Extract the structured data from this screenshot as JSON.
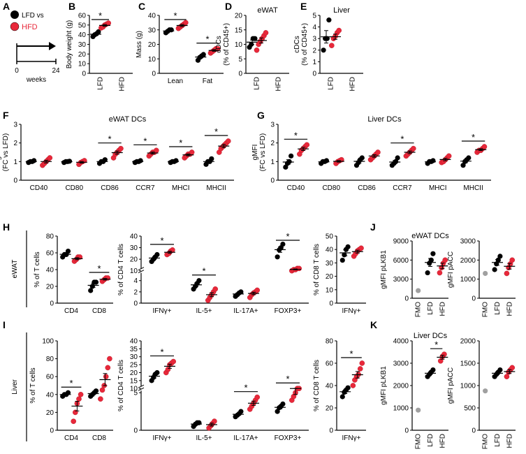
{
  "colors": {
    "lfd": "#000000",
    "hfd": "#e8283a",
    "fmo": "#a0a0a0"
  },
  "panel_labels": [
    "A",
    "B",
    "C",
    "D",
    "E",
    "F",
    "G",
    "H",
    "I",
    "J",
    "K"
  ],
  "schematic": {
    "legend": [
      {
        "label": "LFD vs",
        "color": "#000000"
      },
      {
        "label": "HFD",
        "color": "#e8283a"
      }
    ],
    "tick_start": "0",
    "tick_end": "24",
    "xlabel": "weeks"
  },
  "row_labels": {
    "H": "eWAT",
    "I": "Liver"
  },
  "chart_data": [
    {
      "id": "B",
      "type": "scatter",
      "title": "",
      "ylabel": "Body weight (g)",
      "ylim": [
        0,
        60
      ],
      "yticks": [
        "0",
        "10",
        "20",
        "30",
        "40",
        "50",
        "60"
      ],
      "categories": [
        "LFD",
        "HFD"
      ],
      "rotate_x": true,
      "series": [
        {
          "name": "LFD",
          "values": [
            [
              38,
              40,
              41,
              43
            ]
          ]
        },
        {
          "name": "HFD",
          "values": [
            [
              47,
              48,
              50,
              51,
              52
            ]
          ]
        }
      ],
      "sig": [
        0
      ]
    },
    {
      "id": "C",
      "type": "scatter",
      "title": "",
      "ylabel": "Mass (g)",
      "ylim": [
        0,
        40
      ],
      "yticks": [
        "0",
        "10",
        "20",
        "30",
        "40"
      ],
      "categories": [
        "Lean",
        "Fat"
      ],
      "series": [
        {
          "name": "LFD",
          "values": [
            [
              28,
              29,
              30,
              30
            ],
            [
              9,
              11,
              12,
              13
            ]
          ]
        },
        {
          "name": "HFD",
          "values": [
            [
              31,
              32,
              33,
              34,
              35
            ],
            [
              14,
              15,
              16,
              17,
              17
            ]
          ]
        }
      ],
      "sig": [
        0,
        1
      ]
    },
    {
      "id": "D",
      "type": "scatter",
      "title": "eWAT",
      "ylabel": "cDCs (% of CD45+)",
      "ylim": [
        0,
        20
      ],
      "yticks": [
        "0",
        "5",
        "10",
        "15",
        "20"
      ],
      "categories": [
        "LFD",
        "HFD"
      ],
      "rotate_x": true,
      "series": [
        {
          "name": "LFD",
          "values": [
            [
              9,
              10,
              12,
              12
            ]
          ]
        },
        {
          "name": "HFD",
          "values": [
            [
              8,
              10,
              11,
              12,
              13,
              14
            ]
          ]
        }
      ],
      "sig": []
    },
    {
      "id": "E",
      "type": "scatter",
      "title": "Liver",
      "ylabel": "cDCs (% of CD45+)",
      "ylim": [
        0,
        5
      ],
      "yticks": [
        "0",
        "1",
        "2",
        "3",
        "4",
        "5"
      ],
      "categories": [
        "LFD",
        "HFD"
      ],
      "rotate_x": true,
      "series": [
        {
          "name": "LFD",
          "values": [
            [
              2,
              3,
              3,
              4.6
            ]
          ]
        },
        {
          "name": "HFD",
          "values": [
            [
              2.4,
              3,
              3.2,
              3.5,
              3.7
            ]
          ]
        }
      ],
      "sig": []
    },
    {
      "id": "F",
      "type": "scatter",
      "title": "eWAT DCs",
      "ylabel": "gMFI (FC vs LFD)",
      "ylim": [
        0,
        3
      ],
      "yticks": [
        "0",
        "1",
        "2",
        "3"
      ],
      "categories": [
        "CD40",
        "CD80",
        "CD86",
        "CCR7",
        "MHCI",
        "MHCII"
      ],
      "series": [
        {
          "name": "LFD",
          "values": [
            [
              0.95,
              1,
              1,
              1.05
            ],
            [
              0.95,
              1,
              1,
              1.02
            ],
            [
              0.9,
              1,
              1,
              1.1
            ],
            [
              0.95,
              1,
              1,
              1.05
            ],
            [
              0.95,
              1,
              1,
              1.05
            ],
            [
              0.85,
              1,
              1,
              1.15
            ]
          ]
        },
        {
          "name": "HFD",
          "values": [
            [
              0.8,
              0.9,
              1,
              1.1,
              1.2
            ],
            [
              0.85,
              0.95,
              1,
              1.05
            ],
            [
              1.2,
              1.4,
              1.5,
              1.6,
              1.7
            ],
            [
              1.3,
              1.4,
              1.5,
              1.5,
              1.6
            ],
            [
              1.2,
              1.3,
              1.4,
              1.4,
              1.5
            ],
            [
              1.5,
              1.7,
              1.8,
              1.9,
              2.0,
              2.1
            ]
          ]
        }
      ],
      "sig": [
        2,
        3,
        4,
        5
      ]
    },
    {
      "id": "G",
      "type": "scatter",
      "title": "Liver DCs",
      "ylabel": "gMFI (FC vs LFD)",
      "ylim": [
        0,
        3
      ],
      "yticks": [
        "0",
        "1",
        "2",
        "3"
      ],
      "categories": [
        "CD40",
        "CD80",
        "CD86",
        "CCR7",
        "MHCI",
        "MHCII"
      ],
      "series": [
        {
          "name": "LFD",
          "values": [
            [
              0.7,
              0.9,
              1,
              1.3
            ],
            [
              0.9,
              1,
              1,
              1.05
            ],
            [
              0.8,
              0.95,
              1.1,
              1.2
            ],
            [
              0.8,
              0.9,
              1,
              1.2
            ],
            [
              0.9,
              1,
              1,
              1.05
            ],
            [
              0.8,
              1,
              1.1,
              1.2
            ]
          ]
        },
        {
          "name": "HFD",
          "values": [
            [
              1.4,
              1.6,
              1.7,
              1.8,
              1.9
            ],
            [
              0.9,
              1,
              1.05,
              1.1
            ],
            [
              1.1,
              1.2,
              1.3,
              1.4,
              1.5
            ],
            [
              1.3,
              1.4,
              1.5,
              1.6,
              1.7
            ],
            [
              0.95,
              1,
              1.1,
              1.2,
              1.3
            ],
            [
              1.5,
              1.6,
              1.6,
              1.7,
              1.8
            ]
          ]
        }
      ],
      "sig": [
        0,
        3,
        5
      ]
    },
    {
      "id": "H1",
      "type": "scatter",
      "title": "",
      "ylabel": "% of T cells",
      "ylim": [
        0,
        80
      ],
      "yticks": [
        "0",
        "20",
        "40",
        "60",
        "80"
      ],
      "categories": [
        "CD4",
        "CD8"
      ],
      "series": [
        {
          "name": "LFD",
          "values": [
            [
              55,
              58,
              58,
              62
            ],
            [
              15,
              20,
              25,
              25
            ]
          ]
        },
        {
          "name": "HFD",
          "values": [
            [
              50,
              52,
              55,
              55
            ],
            [
              26,
              28,
              30,
              30
            ]
          ]
        }
      ],
      "sig": [
        1
      ]
    },
    {
      "id": "H2",
      "type": "scatter",
      "title": "",
      "ylabel": "% of CD4 T cells",
      "ylim": [
        0,
        40
      ],
      "ybreak": [
        5,
        10
      ],
      "yticks": [
        "0",
        "2",
        "4",
        "10",
        "20",
        "30",
        "40"
      ],
      "categories": [
        "IFNγ+",
        "IL-5+",
        "IL-17A+",
        "FOXP3+"
      ],
      "series": [
        {
          "name": "LFD",
          "values": [
            [
              18,
              20,
              22,
              24
            ],
            [
              2.5,
              3,
              3.5,
              4
            ],
            [
              1.2,
              1.5,
              1.8,
              2
            ],
            [
              22,
              28,
              30,
              33
            ]
          ]
        },
        {
          "name": "HFD",
          "values": [
            [
              24,
              25,
              27,
              28
            ],
            [
              0.5,
              1,
              1.5,
              2,
              2.5
            ],
            [
              1,
              1.5,
              1.8,
              2,
              2.3
            ],
            [
              10,
              11,
              11,
              12,
              12
            ]
          ]
        }
      ],
      "sig": [
        0,
        1,
        3
      ]
    },
    {
      "id": "H3",
      "type": "scatter",
      "title": "",
      "ylabel": "% of CD8 T cells",
      "ylim": [
        0,
        50
      ],
      "yticks": [
        "0",
        "10",
        "20",
        "30",
        "40",
        "50"
      ],
      "categories": [
        "IFNγ+"
      ],
      "series": [
        {
          "name": "LFD",
          "values": [
            [
              32,
              36,
              40,
              42
            ]
          ]
        },
        {
          "name": "HFD",
          "values": [
            [
              35,
              37,
              39,
              40,
              41
            ]
          ]
        }
      ],
      "sig": []
    },
    {
      "id": "I1",
      "type": "scatter",
      "title": "",
      "ylabel": "% of T cells",
      "ylim": [
        0,
        100
      ],
      "yticks": [
        "0",
        "20",
        "40",
        "60",
        "80",
        "100"
      ],
      "categories": [
        "CD4",
        "CD8"
      ],
      "series": [
        {
          "name": "LFD",
          "values": [
            [
              38,
              40,
              40,
              42
            ],
            [
              38,
              40,
              42,
              44
            ]
          ]
        },
        {
          "name": "HFD",
          "values": [
            [
              10,
              20,
              30,
              35,
              40
            ],
            [
              35,
              45,
              50,
              60,
              70,
              80
            ]
          ]
        }
      ],
      "sig": [
        0
      ]
    },
    {
      "id": "I2",
      "type": "scatter",
      "title": "",
      "ylabel": "% of CD4 T cells",
      "ylim": [
        0,
        40
      ],
      "ybreak": [
        5,
        10
      ],
      "yticks": [
        "0",
        "5",
        "10",
        "15",
        "20",
        "25",
        "30",
        "35",
        "40"
      ],
      "categories": [
        "IFNγ+",
        "IL-5+",
        "IL-17A+",
        "FOXP3+"
      ],
      "series": [
        {
          "name": "LFD",
          "values": [
            [
              15,
              17,
              19,
              20
            ],
            [
              0.5,
              0.8,
              1,
              1
            ],
            [
              1.8,
              2,
              2.2,
              2.5
            ],
            [
              2.5,
              3,
              3.2,
              3.5
            ]
          ]
        },
        {
          "name": "HFD",
          "values": [
            [
              20,
              22,
              25,
              26,
              27
            ],
            [
              0.3,
              0.6,
              0.9,
              1.2
            ],
            [
              2.8,
              3.2,
              3.6,
              4,
              4.4
            ],
            [
              4,
              4.5,
              5,
              6,
              7
            ]
          ]
        }
      ],
      "sig": [
        0,
        2,
        3
      ]
    },
    {
      "id": "I3",
      "type": "scatter",
      "title": "",
      "ylabel": "% of CD8 T cells",
      "ylim": [
        0,
        80
      ],
      "yticks": [
        "0",
        "20",
        "40",
        "60",
        "80"
      ],
      "categories": [
        "IFNγ+"
      ],
      "series": [
        {
          "name": "LFD",
          "values": [
            [
              30,
              34,
              36,
              38
            ]
          ]
        },
        {
          "name": "HFD",
          "values": [
            [
              40,
              45,
              48,
              50,
              55,
              60
            ]
          ]
        }
      ],
      "sig": [
        0
      ]
    },
    {
      "id": "J1",
      "type": "scatter",
      "title": "eWAT DCs",
      "ylabel": "gMFI pLKB1",
      "ylim": [
        0,
        9000
      ],
      "yticks": [
        "0",
        "3000",
        "6000",
        "9000"
      ],
      "categories": [
        "FMO",
        "LFD",
        "HFD"
      ],
      "rotate_x": true,
      "series": [
        {
          "name": "FMO",
          "values": [
            [
              1200
            ],
            [],
            []
          ]
        },
        {
          "name": "LFD",
          "values": [
            [],
            [
              4000,
              5500,
              6000,
              7000
            ],
            []
          ]
        },
        {
          "name": "HFD",
          "values": [
            [],
            [],
            [
              4000,
              4800,
              5500,
              6000
            ]
          ]
        }
      ],
      "sig": []
    },
    {
      "id": "J2",
      "type": "scatter",
      "title": "",
      "ylabel": "gMFI pACC",
      "ylim": [
        0,
        3000
      ],
      "yticks": [
        "0",
        "1000",
        "2000",
        "3000"
      ],
      "categories": [
        "FMO",
        "LFD",
        "HFD"
      ],
      "rotate_x": true,
      "series": [
        {
          "name": "FMO",
          "values": [
            [
              1300
            ],
            [],
            []
          ]
        },
        {
          "name": "LFD",
          "values": [
            [],
            [
              1500,
              1800,
              2000,
              2200
            ],
            []
          ]
        },
        {
          "name": "HFD",
          "values": [
            [],
            [],
            [
              1300,
              1600,
              1800,
              2000
            ]
          ]
        }
      ],
      "sig": []
    },
    {
      "id": "K1",
      "type": "scatter",
      "title": "Liver DCs",
      "ylabel": "gMFI pLKB1",
      "ylim": [
        0,
        4000
      ],
      "yticks": [
        "0",
        "1000",
        "2000",
        "3000",
        "4000"
      ],
      "categories": [
        "FMO",
        "LFD",
        "HFD"
      ],
      "rotate_x": true,
      "series": [
        {
          "name": "FMO",
          "values": [
            [
              900
            ],
            [],
            []
          ]
        },
        {
          "name": "LFD",
          "values": [
            [],
            [
              2400,
              2500,
              2600,
              2700
            ],
            []
          ]
        },
        {
          "name": "HFD",
          "values": [
            [],
            [],
            [
              3100,
              3300,
              3400
            ]
          ]
        }
      ],
      "sig": [
        [
          1,
          2
        ]
      ]
    },
    {
      "id": "K2",
      "type": "scatter",
      "title": "",
      "ylabel": "gMFI pACC",
      "ylim": [
        0,
        2000
      ],
      "yticks": [
        "0",
        "500",
        "1000",
        "1500",
        "2000"
      ],
      "categories": [
        "FMO",
        "LFD",
        "HFD"
      ],
      "rotate_x": true,
      "series": [
        {
          "name": "FMO",
          "values": [
            [
              880
            ],
            [],
            []
          ]
        },
        {
          "name": "LFD",
          "values": [
            [],
            [
              1200,
              1250,
              1300,
              1350
            ],
            []
          ]
        },
        {
          "name": "HFD",
          "values": [
            [],
            [],
            [
              1200,
              1300,
              1350,
              1400
            ]
          ]
        }
      ],
      "sig": []
    }
  ]
}
